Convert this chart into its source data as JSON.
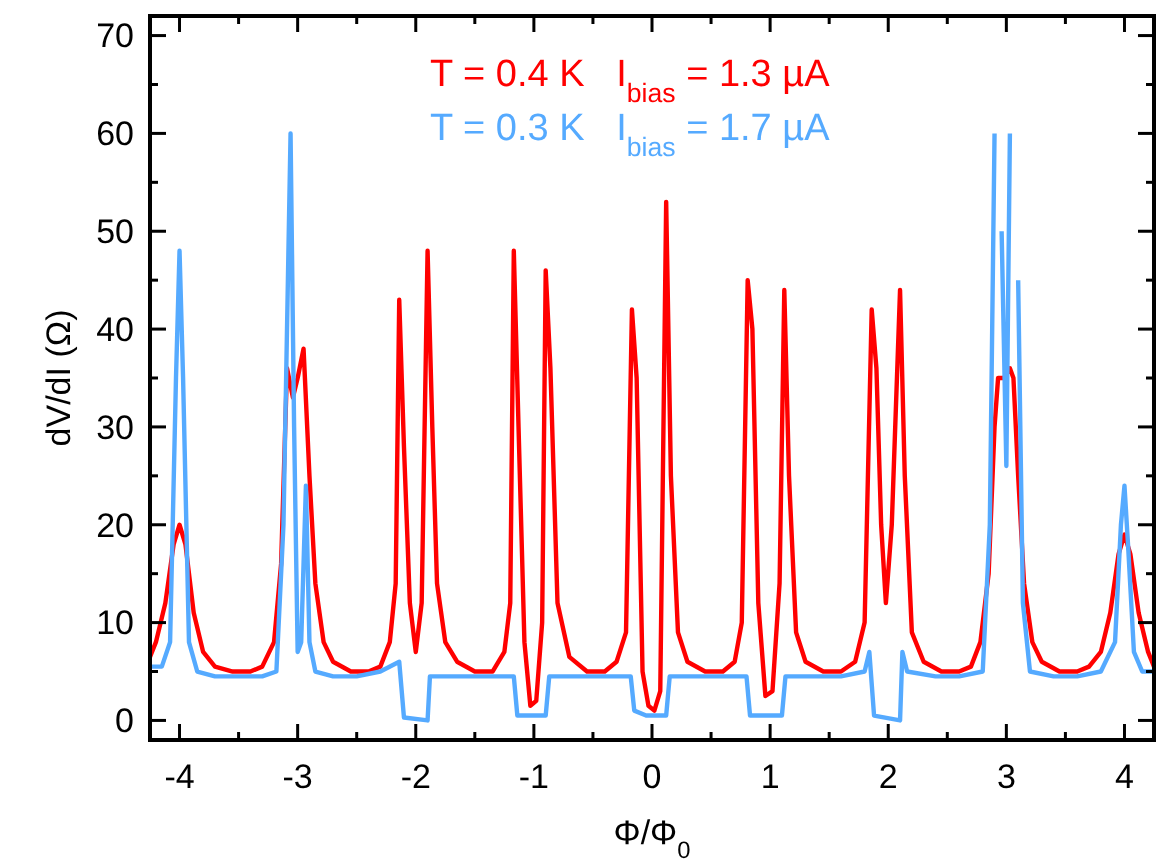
{
  "chart_data": {
    "type": "line",
    "xlabel": "Φ/Φ$_{0}$",
    "ylabel": "dV/dI (Ω)",
    "xlim": [
      -4.25,
      4.25
    ],
    "ylim": [
      -2,
      72
    ],
    "xticks": [
      -4,
      {
        "value": -3.5,
        "label": null
      },
      -3,
      {
        "value": -2.5,
        "label": null
      },
      -2,
      {
        "value": -1.5,
        "label": null
      },
      -1,
      {
        "value": -0.5,
        "label": null
      },
      0,
      {
        "value": 0.5,
        "label": null
      },
      1,
      {
        "value": 1.5,
        "label": null
      },
      2,
      {
        "value": 2.5,
        "label": null
      },
      3,
      {
        "value": 3.5,
        "label": null
      },
      4
    ],
    "yticks": [
      0,
      {
        "value": 5,
        "label": null
      },
      10,
      {
        "value": 15,
        "label": null
      },
      20,
      {
        "value": 25,
        "label": null
      },
      30,
      {
        "value": 35,
        "label": null
      },
      40,
      {
        "value": 45,
        "label": null
      },
      50,
      {
        "value": 55,
        "label": null
      },
      60,
      {
        "value": 65,
        "label": null
      },
      70
    ],
    "grid": false,
    "legend": "top",
    "marker": "none",
    "line_style": "solid",
    "series": [
      {
        "name": "T = 0.4 K   I$_{bias}$ = 1.3 µA",
        "color": "#ff0000",
        "x": [
          -4.25,
          -4.2,
          -4.12,
          -4.05,
          -4.0,
          -3.95,
          -3.88,
          -3.8,
          -3.7,
          -3.55,
          -3.4,
          -3.3,
          -3.2,
          -3.14,
          -3.09,
          -3.04,
          -3.0,
          -2.95,
          -2.9,
          -2.85,
          -2.78,
          -2.7,
          -2.55,
          -2.4,
          -2.3,
          -2.22,
          -2.17,
          -2.14,
          -2.1,
          -2.05,
          -2.0,
          -1.95,
          -1.9,
          -1.86,
          -1.82,
          -1.75,
          -1.65,
          -1.5,
          -1.35,
          -1.25,
          -1.2,
          -1.17,
          -1.13,
          -1.08,
          -1.03,
          -0.98,
          -0.93,
          -0.9,
          -0.86,
          -0.8,
          -0.7,
          -0.55,
          -0.4,
          -0.3,
          -0.22,
          -0.17,
          -0.13,
          -0.08,
          -0.03,
          0.02,
          0.07,
          0.12,
          0.16,
          0.22,
          0.3,
          0.45,
          0.6,
          0.7,
          0.76,
          0.81,
          0.85,
          0.9,
          0.96,
          1.02,
          1.08,
          1.12,
          1.16,
          1.22,
          1.3,
          1.45,
          1.6,
          1.72,
          1.8,
          1.86,
          1.9,
          1.94,
          1.98,
          2.03,
          2.1,
          2.14,
          2.2,
          2.3,
          2.45,
          2.6,
          2.7,
          2.78,
          2.85,
          2.9,
          2.93,
          2.98,
          3.03,
          3.06,
          3.1,
          3.15,
          3.22,
          3.3,
          3.45,
          3.6,
          3.7,
          3.8,
          3.88,
          3.95,
          4.0,
          4.05,
          4.12,
          4.2,
          4.25
        ],
        "values": [
          6.5,
          8,
          12,
          18,
          20,
          18,
          11,
          7,
          5.5,
          5,
          5,
          5.5,
          8,
          16,
          36,
          33,
          35,
          38,
          25,
          14,
          8,
          6,
          5,
          5,
          5.5,
          8,
          14,
          43,
          28,
          12,
          7,
          12,
          48,
          30,
          14,
          8,
          6,
          5,
          5,
          7,
          12,
          48,
          30,
          8,
          1.5,
          2,
          10,
          46,
          36,
          12,
          6.5,
          5,
          5,
          6,
          9,
          42,
          35,
          5,
          1.5,
          1,
          3,
          53,
          25,
          9,
          6,
          5,
          5,
          6,
          10,
          45,
          40,
          12,
          2.5,
          3,
          14,
          44,
          25,
          9,
          6,
          5,
          5,
          6,
          10,
          42,
          36,
          20,
          12,
          20,
          44,
          25,
          9,
          6,
          5,
          5,
          5.5,
          8,
          15,
          30,
          35,
          35,
          36,
          35,
          25,
          14,
          8,
          6,
          5,
          5,
          5.5,
          7,
          11,
          17,
          19,
          17,
          11,
          7,
          5.5
        ]
      },
      {
        "name": "T = 0.3 K   I$_{bias}$ = 1.7 µA",
        "color": "#55aaff",
        "x": [
          -4.25,
          -4.15,
          -4.08,
          -4.03,
          -4.0,
          -3.97,
          -3.92,
          -3.85,
          -3.7,
          -3.5,
          -3.3,
          -3.18,
          -3.12,
          -3.06,
          -3.03,
          -3.0,
          -2.97,
          -2.93,
          -2.9,
          -2.85,
          -2.7,
          -2.5,
          -2.3,
          -2.14,
          -2.1,
          -1.9,
          -1.88,
          -1.7,
          -1.5,
          -1.3,
          -1.17,
          -1.14,
          -0.9,
          -0.87,
          -0.6,
          -0.4,
          -0.18,
          -0.15,
          -0.05,
          0.12,
          0.15,
          0.4,
          0.6,
          0.8,
          0.83,
          1.1,
          1.13,
          1.4,
          1.6,
          1.8,
          1.84,
          1.88,
          2.1,
          2.12,
          2.16,
          2.4,
          2.6,
          2.8,
          2.86,
          2.9,
          2.93,
          2.96,
          3.0,
          3.03,
          3.06,
          3.1,
          3.14,
          3.2,
          3.4,
          3.6,
          3.8,
          3.92,
          3.97,
          4.0,
          4.03,
          4.08,
          4.15,
          4.25
        ],
        "values": [
          5.5,
          5.5,
          8,
          35,
          48,
          35,
          8,
          5,
          4.5,
          4.5,
          4.5,
          5,
          20,
          60,
          30,
          7,
          8,
          24,
          8,
          5,
          4.5,
          4.5,
          5,
          6,
          0.3,
          0,
          4.5,
          4.5,
          4.5,
          4.5,
          4.5,
          0.5,
          0.5,
          4.5,
          4.5,
          4.5,
          4.5,
          1,
          0.5,
          0.5,
          4.5,
          4.5,
          4.5,
          4.5,
          0.5,
          0.5,
          4.5,
          4.5,
          4.5,
          5,
          7,
          0.5,
          0,
          7,
          5,
          4.5,
          4.5,
          5,
          20,
          60,
          null,
          50,
          26,
          60,
          null,
          45,
          12,
          5,
          4.5,
          4.5,
          5,
          8,
          20,
          24,
          18,
          7,
          5,
          5
        ]
      }
    ]
  }
}
